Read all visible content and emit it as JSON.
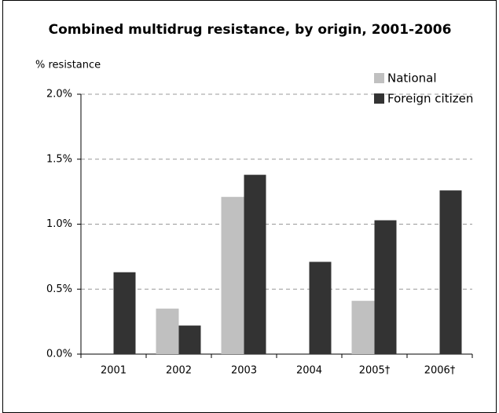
{
  "chart_data": {
    "type": "bar",
    "title": "Combined multidrug resistance, by origin, 2001-2006",
    "y_label": "% resistance",
    "categories": [
      "2001",
      "2002",
      "2003",
      "2004",
      "2005†",
      "2006†"
    ],
    "series": [
      {
        "name": "National",
        "color": "#c0c0c0",
        "values": [
          null,
          0.35,
          1.21,
          null,
          0.41,
          null
        ]
      },
      {
        "name": "Foreign citizen",
        "color": "#333333",
        "values": [
          0.63,
          0.22,
          1.38,
          0.71,
          1.03,
          1.26
        ]
      }
    ],
    "ylim": [
      0,
      2
    ],
    "yticks": [
      {
        "value": 0,
        "label": "0.0%"
      },
      {
        "value": 0.5,
        "label": "0.5%"
      },
      {
        "value": 1,
        "label": "1.0%"
      },
      {
        "value": 1.5,
        "label": "1.5%"
      },
      {
        "value": 2,
        "label": "2.0%"
      }
    ],
    "grid": true,
    "legend": "upper right"
  }
}
